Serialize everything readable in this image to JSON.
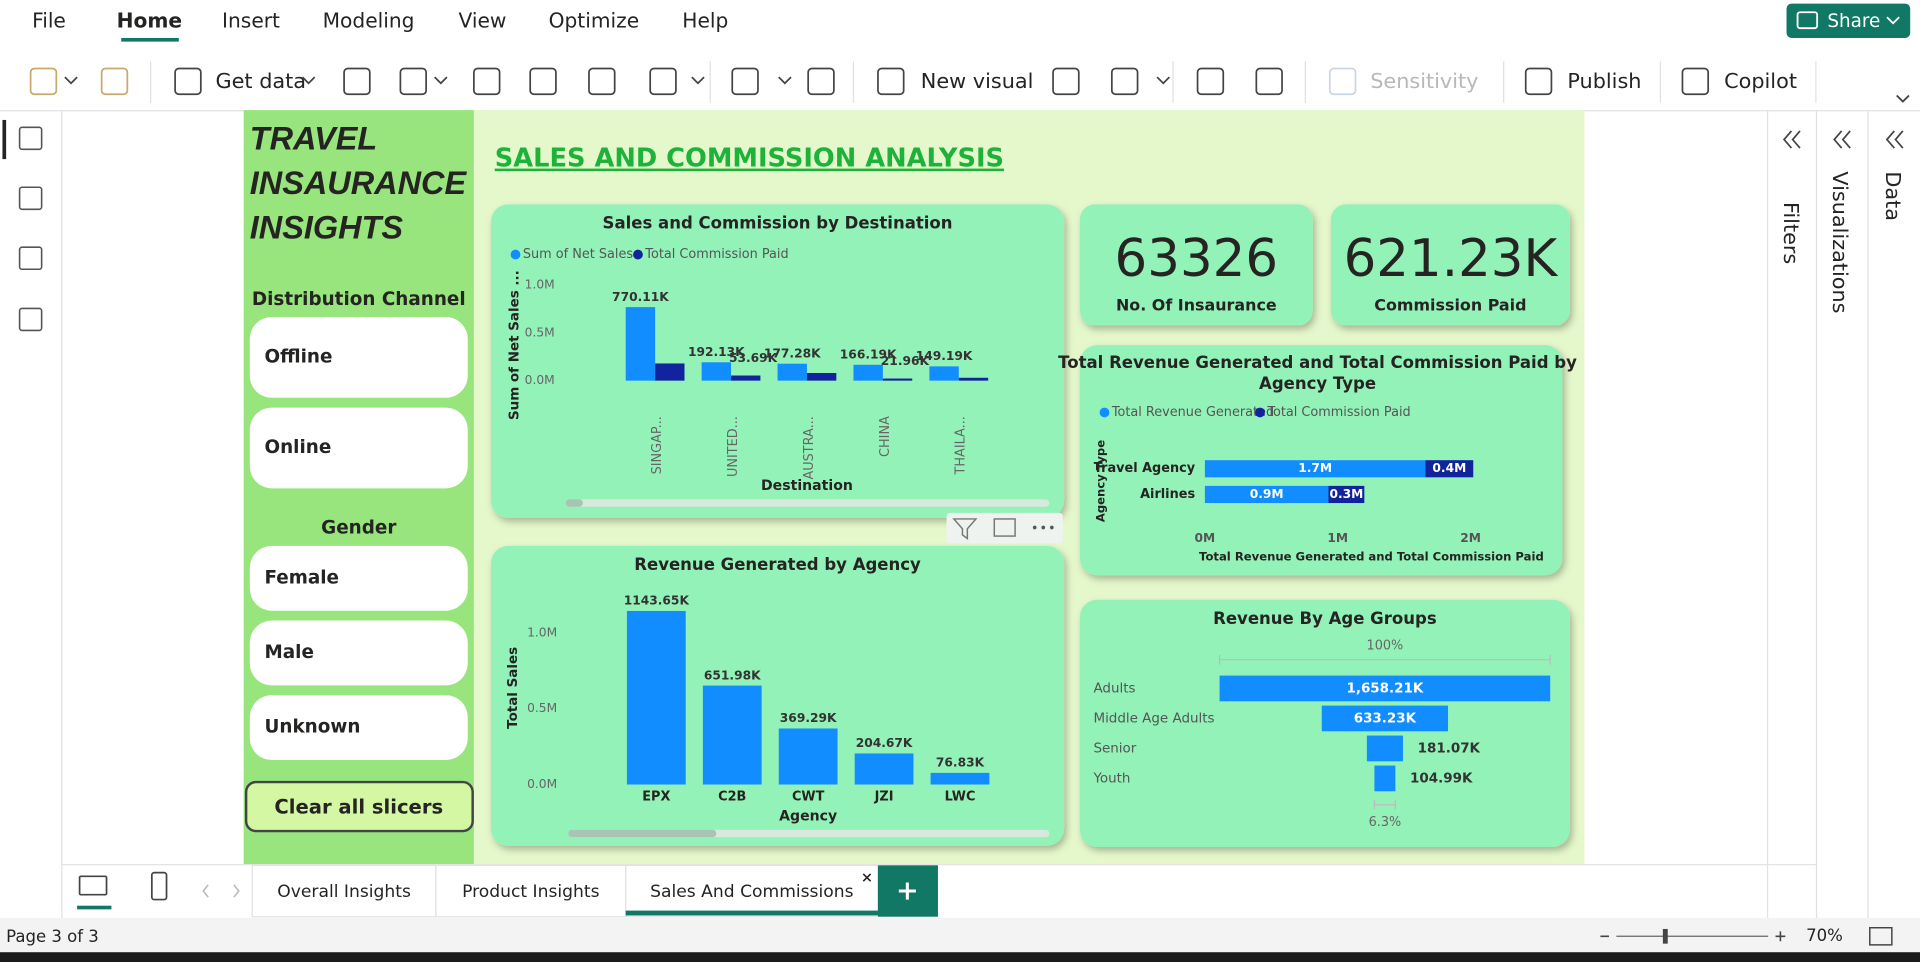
{
  "ribbon": {
    "menu": [
      "File",
      "Home",
      "Insert",
      "Modeling",
      "View",
      "Optimize",
      "Help"
    ],
    "share": "Share",
    "tools": [
      "Get data",
      "New visual",
      "Sensitivity",
      "Publish",
      "Copilot"
    ]
  },
  "panes": [
    "Filters",
    "Visualizations",
    "Data"
  ],
  "report": {
    "title_lines": [
      "TRAVEL",
      "INSAURANCE",
      "INSIGHTS"
    ],
    "heading": "SALES AND COMMISSION ANALYSIS",
    "slicers": [
      {
        "title": "Distribution Channel",
        "items": [
          "Offline",
          "Online"
        ]
      },
      {
        "title": "Gender",
        "items": [
          "Female",
          "Male",
          "Unknown"
        ]
      }
    ],
    "clear_button": "Clear all slicers",
    "cards": [
      {
        "value": 63326,
        "label": "No. Of Insaurance"
      },
      {
        "value": "621.23K",
        "label": "Commission Paid"
      }
    ]
  },
  "chart_data": [
    {
      "type": "bar",
      "title": "Sales and Commission by Destination",
      "categories": [
        "SINGAP...",
        "UNITED...",
        "AUSTRA...",
        "CHINA",
        "THAILA..."
      ],
      "series": [
        {
          "name": "Sum of Net Sales",
          "color": "#118DFF",
          "values": [
            770110,
            192130,
            177280,
            166190,
            149190
          ],
          "value_labels": [
            "770.11K",
            "192.13K",
            "177.28K",
            "166.19K",
            "149.19K"
          ]
        },
        {
          "name": "Total Commission Paid",
          "color": "#12239E",
          "values": [
            180000,
            53690,
            80000,
            21960,
            30000
          ],
          "value_labels": [
            null,
            "53.69K",
            null,
            "21.96K",
            null
          ]
        }
      ],
      "xlabel": "Destination",
      "ylabel": "Sum of Net Sales ...",
      "ylim": [
        0,
        1000000
      ],
      "yticks": [
        {
          "value": 0,
          "label": "0.0M"
        },
        {
          "value": 500000,
          "label": "0.5M"
        },
        {
          "value": 1000000,
          "label": "1.0M"
        }
      ]
    },
    {
      "type": "bar",
      "title": "Revenue Generated by Agency",
      "categories": [
        "EPX",
        "C2B",
        "CWT",
        "JZI",
        "LWC"
      ],
      "values": [
        1143650,
        651980,
        369290,
        204670,
        76830
      ],
      "value_labels": [
        "1143.65K",
        "651.98K",
        "369.29K",
        "204.67K",
        "76.83K"
      ],
      "color": "#118DFF",
      "xlabel": "Agency",
      "ylabel": "Total Sales",
      "ylim": [
        0,
        1200000
      ],
      "yticks": [
        {
          "value": 0,
          "label": "0.0M"
        },
        {
          "value": 500000,
          "label": "0.5M"
        },
        {
          "value": 1000000,
          "label": "1.0M"
        }
      ]
    },
    {
      "type": "bar",
      "orientation": "horizontal",
      "stacked": true,
      "title_lines": [
        "Total Revenue Generated and Total Commission Paid by",
        "Agency Type"
      ],
      "categories": [
        "Travel Agency",
        "Airlines"
      ],
      "series": [
        {
          "name": "Total Revenue Generated",
          "color": "#118DFF",
          "values": [
            1660000,
            930000
          ],
          "value_labels": [
            "1.7M",
            "0.9M"
          ]
        },
        {
          "name": "Total Commission Paid",
          "color": "#12239E",
          "values": [
            360000,
            270000
          ],
          "value_labels": [
            "0.4M",
            "0.3M"
          ]
        }
      ],
      "xlabel": "Total Revenue Generated and Total Commission Paid",
      "ylabel": "Agency Type",
      "xlim": [
        0,
        2000000
      ],
      "xticks": [
        {
          "value": 0,
          "label": "0M"
        },
        {
          "value": 1000000,
          "label": "1M"
        },
        {
          "value": 2000000,
          "label": "2M"
        }
      ]
    },
    {
      "type": "funnel",
      "title": "Revenue By Age Groups",
      "categories": [
        "Adults",
        "Middle Age Adults",
        "Senior",
        "Youth"
      ],
      "values": [
        1658210,
        633230,
        181070,
        104990
      ],
      "value_labels": [
        "1,658.21K",
        "633.23K",
        "181.07K",
        "104.99K"
      ],
      "color": "#118DFF",
      "top_label": "100%",
      "bottom_label": "6.3%"
    }
  ],
  "page_tabs": [
    "Overall Insights",
    "Product Insights",
    "Sales And Commissions"
  ],
  "status": {
    "page": "Page 3 of 3",
    "zoom": "70%"
  }
}
